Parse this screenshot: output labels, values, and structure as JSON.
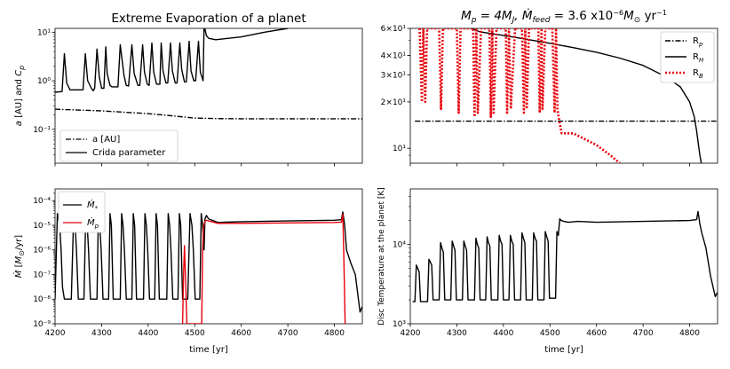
{
  "figure": {
    "time_xlabel": "time [yr]"
  },
  "chart_data": [
    {
      "id": "tl",
      "type": "line",
      "title": "Extreme Evaporation of a planet",
      "ylabel": "a [AU] and C_p",
      "xlabel": "",
      "xlim": [
        4200,
        4860
      ],
      "ylim": [
        0.02,
        12
      ],
      "yscale": "log",
      "xticks": [
        4200,
        4300,
        4400,
        4500,
        4600,
        4700,
        4800
      ],
      "xticklabels": [],
      "yticks": [
        0.1,
        1,
        10
      ],
      "yticklabels": [
        "10⁻¹",
        "10⁰",
        "10¹"
      ],
      "legend": {
        "position": "lower-left",
        "entries": [
          {
            "label": "a [AU]",
            "style": "dashdot",
            "color": "#000000"
          },
          {
            "label": "Crida parameter",
            "style": "solid",
            "color": "#000000"
          }
        ]
      },
      "series": [
        {
          "name": "a [AU]",
          "style": "dashdot",
          "color": "#000000",
          "x": [
            4200,
            4300,
            4400,
            4450,
            4500,
            4550,
            4600,
            4860
          ],
          "y": [
            0.26,
            0.24,
            0.21,
            0.19,
            0.17,
            0.166,
            0.165,
            0.165
          ]
        },
        {
          "name": "Crida parameter",
          "style": "solid",
          "color": "#000000",
          "x": [
            4200,
            4215,
            4220,
            4225,
            4232,
            4260,
            4265,
            4270,
            4278,
            4282,
            4285,
            4290,
            4295,
            4300,
            4305,
            4309,
            4312,
            4318,
            4322,
            4335,
            4340,
            4348,
            4353,
            4358,
            4365,
            4370,
            4378,
            4382,
            4388,
            4392,
            4398,
            4402,
            4408,
            4412,
            4418,
            4425,
            4428,
            4432,
            4438,
            4442,
            4448,
            4452,
            4458,
            4462,
            4468,
            4472,
            4478,
            4482,
            4488,
            4492,
            4498,
            4502,
            4508,
            4512,
            4518,
            4520,
            4525,
            4530,
            4545,
            4600,
            4650,
            4700
          ],
          "y": [
            0.58,
            0.6,
            3.6,
            0.9,
            0.65,
            0.65,
            3.6,
            1.0,
            0.7,
            0.62,
            0.7,
            4.5,
            1.2,
            0.7,
            0.7,
            5.0,
            1.4,
            0.8,
            0.75,
            0.75,
            5.5,
            1.3,
            0.8,
            0.78,
            5.5,
            1.4,
            0.8,
            0.8,
            5.5,
            1.5,
            0.85,
            0.8,
            6.0,
            1.5,
            0.85,
            0.85,
            6.0,
            1.6,
            0.9,
            0.9,
            6.0,
            1.6,
            0.9,
            0.9,
            6.0,
            1.7,
            0.95,
            0.95,
            6.5,
            1.6,
            1.0,
            1.0,
            6.5,
            1.5,
            1.0,
            14,
            8.5,
            7.5,
            7.0,
            8.0,
            10,
            12
          ]
        }
      ]
    },
    {
      "id": "tr",
      "type": "line",
      "title": "M_p = 4M_J, Ṁ_feed = 3.6 x10⁻⁶ M_⊙ yr⁻¹",
      "ylabel": "",
      "xlabel": "",
      "xlim": [
        4200,
        4860
      ],
      "ylim": [
        8,
        60
      ],
      "yscale": "log",
      "xticks": [
        4200,
        4300,
        4400,
        4500,
        4600,
        4700,
        4800
      ],
      "xticklabels": [],
      "yticks": [
        10,
        20,
        30,
        40,
        60
      ],
      "yticklabels": [
        "10¹",
        "2×10¹",
        "3×10¹",
        "4×10¹",
        "6×10¹"
      ],
      "legend": {
        "position": "top-right",
        "entries": [
          {
            "label": "R_p",
            "style": "dashdot",
            "color": "#000000"
          },
          {
            "label": "R_H",
            "style": "solid",
            "color": "#000000"
          },
          {
            "label": "R_B",
            "style": "dotted",
            "color": "#e8000b"
          }
        ]
      },
      "series": [
        {
          "name": "R_p",
          "style": "dashdot",
          "color": "#000000",
          "x": [
            4210,
            4860
          ],
          "y": [
            15,
            15
          ]
        },
        {
          "name": "R_H",
          "style": "solid",
          "color": "#000000",
          "x": [
            4330,
            4350,
            4400,
            4450,
            4500,
            4550,
            4600,
            4650,
            4700,
            4750,
            4780,
            4800,
            4810,
            4815,
            4820,
            4822,
            4825
          ],
          "y": [
            60,
            57,
            54,
            51,
            48,
            45,
            42,
            38.5,
            34.5,
            29,
            25,
            20,
            16,
            13,
            10,
            9,
            8
          ]
        },
        {
          "name": "R_B",
          "style": "dotted",
          "color": "#e8000b",
          "x": [
            4220,
            4225,
            4228,
            4232,
            4236,
            4262,
            4266,
            4270,
            4300,
            4304,
            4308,
            4335,
            4338,
            4342,
            4345,
            4352,
            4370,
            4373,
            4376,
            4379,
            4385,
            4405,
            4408,
            4412,
            4416,
            4425,
            4440,
            4444,
            4447,
            4450,
            4455,
            4475,
            4478,
            4482,
            4484,
            4490,
            4505,
            4510,
            4513,
            4516,
            4520,
            4525,
            4550,
            4600,
            4630,
            4650
          ],
          "y": [
            60,
            20,
            60,
            20,
            60,
            60,
            18,
            60,
            60,
            17,
            60,
            60,
            16,
            60,
            17,
            60,
            60,
            16,
            60,
            17,
            60,
            60,
            17,
            60,
            18,
            60,
            60,
            17,
            60,
            18,
            60,
            60,
            17,
            60,
            18,
            60,
            60,
            17,
            60,
            18,
            15,
            12.5,
            12.5,
            10.5,
            9,
            8
          ]
        }
      ]
    },
    {
      "id": "bl",
      "type": "line",
      "title": "",
      "ylabel": "Ṁ [M_⊙/yr]",
      "xlabel": "time [yr]",
      "xlim": [
        4200,
        4860
      ],
      "ylim": [
        1e-09,
        0.0003
      ],
      "yscale": "log",
      "xticks": [
        4200,
        4300,
        4400,
        4500,
        4600,
        4700,
        4800
      ],
      "xticklabels": [
        "4200",
        "4300",
        "4400",
        "4500",
        "4600",
        "4700",
        "4800"
      ],
      "yticks": [
        1e-09,
        1e-08,
        1e-07,
        1e-06,
        1e-05,
        0.0001
      ],
      "yticklabels": [
        "10⁻⁹",
        "10⁻⁸",
        "10⁻⁷",
        "10⁻⁶",
        "10⁻⁵",
        "10⁻⁴"
      ],
      "legend": {
        "position": "top-left",
        "entries": [
          {
            "label": "Ṁ_*",
            "style": "solid",
            "color": "#000000"
          },
          {
            "label": "Ṁ_p",
            "style": "solid",
            "color": "#e8000b"
          }
        ]
      },
      "series": [
        {
          "name": "Ṁ_*",
          "style": "solid",
          "color": "#000000",
          "x": [
            4200,
            4205,
            4210,
            4213,
            4216,
            4220,
            4235,
            4240,
            4243,
            4246,
            4250,
            4262,
            4266,
            4269,
            4272,
            4276,
            4290,
            4293,
            4296,
            4299,
            4303,
            4315,
            4318,
            4321,
            4325,
            4340,
            4343,
            4346,
            4349,
            4353,
            4365,
            4368,
            4371,
            4375,
            4390,
            4393,
            4396,
            4399,
            4403,
            4414,
            4417,
            4420,
            4424,
            4440,
            4443,
            4446,
            4449,
            4453,
            4464,
            4467,
            4470,
            4474,
            4485,
            4490,
            4494,
            4497,
            4501,
            4511,
            4514,
            4517,
            4520,
            4522,
            4525,
            4530,
            4550,
            4600,
            4700,
            4800,
            4815,
            4818,
            4822,
            4826,
            4835,
            4845,
            4855,
            4860
          ],
          "y": [
            1e-08,
            3e-05,
            1e-05,
            1e-06,
            3e-08,
            1e-08,
            1e-08,
            3e-05,
            1e-05,
            1e-06,
            1e-08,
            1e-08,
            3e-05,
            1e-05,
            1e-06,
            1e-08,
            1e-08,
            3e-05,
            1e-05,
            1e-06,
            1e-08,
            1e-08,
            3e-05,
            1e-05,
            1e-08,
            1e-08,
            3e-05,
            1e-05,
            1e-06,
            1e-08,
            1e-08,
            3e-05,
            1e-05,
            1e-08,
            1e-08,
            3e-05,
            1e-05,
            1e-06,
            1e-08,
            1e-08,
            3e-05,
            1e-05,
            1e-08,
            1e-08,
            3e-05,
            1e-05,
            1e-06,
            1e-08,
            1e-08,
            3e-05,
            1e-05,
            1e-08,
            1e-08,
            3e-05,
            1e-05,
            1e-06,
            1e-08,
            1e-08,
            3e-05,
            1e-05,
            1e-06,
            1.8e-05,
            2.5e-05,
            1.8e-05,
            1.3e-05,
            1.4e-05,
            1.5e-05,
            1.6e-05,
            1.7e-05,
            3.5e-05,
            1e-05,
            1e-06,
            3e-07,
            1e-07,
            3e-09,
            5e-09
          ]
        },
        {
          "name": "Ṁ_p",
          "style": "solid",
          "color": "#e8000b",
          "x": [
            4474,
            4476,
            4478,
            4480,
            4483,
            4515,
            4517,
            4519,
            4521,
            4523,
            4525,
            4530,
            4550,
            4600,
            4700,
            4800,
            4815,
            4818,
            4820,
            4822,
            4823
          ],
          "y": [
            1e-09,
            1e-07,
            1.5e-06,
            1e-07,
            1e-09,
            1e-09,
            1e-06,
            8e-06,
            1.3e-05,
            1.5e-05,
            1.6e-05,
            1.5e-05,
            1.2e-05,
            1.2e-05,
            1.25e-05,
            1.3e-05,
            1.35e-05,
            2.8e-05,
            1e-06,
            1e-08,
            1e-09
          ]
        }
      ]
    },
    {
      "id": "br",
      "type": "line",
      "title": "",
      "ylabel": "Disc Temperature at the planet [K]",
      "xlabel": "time [yr]",
      "xlim": [
        4200,
        4860
      ],
      "ylim": [
        1000,
        50000
      ],
      "yscale": "log",
      "xticks": [
        4200,
        4300,
        4400,
        4500,
        4600,
        4700,
        4800
      ],
      "xticklabels": [
        "4200",
        "4300",
        "4400",
        "4500",
        "4600",
        "4700",
        "4800"
      ],
      "yticks": [
        1000,
        10000
      ],
      "yticklabels": [
        "10³",
        "10⁴"
      ],
      "legend": null,
      "series": [
        {
          "name": "Disc Temperature",
          "style": "solid",
          "color": "#000000",
          "x": [
            4205,
            4210,
            4213,
            4216,
            4219,
            4222,
            4237,
            4240,
            4243,
            4246,
            4249,
            4262,
            4265,
            4268,
            4271,
            4274,
            4287,
            4290,
            4293,
            4296,
            4299,
            4312,
            4315,
            4318,
            4321,
            4324,
            4338,
            4341,
            4344,
            4347,
            4350,
            4362,
            4365,
            4368,
            4371,
            4374,
            4388,
            4391,
            4394,
            4397,
            4400,
            4412,
            4415,
            4418,
            4421,
            4424,
            4437,
            4440,
            4443,
            4446,
            4449,
            4462,
            4465,
            4468,
            4471,
            4474,
            4487,
            4490,
            4493,
            4496,
            4499,
            4512,
            4515,
            4518,
            4521,
            4524,
            4530,
            4540,
            4560,
            4600,
            4700,
            4800,
            4815,
            4818,
            4822,
            4826,
            4835,
            4845,
            4855,
            4860
          ],
          "y": [
            1900,
            1900,
            5500,
            5000,
            4500,
            1900,
            1900,
            6500,
            6000,
            5500,
            2000,
            2000,
            10500,
            9000,
            8000,
            2000,
            2000,
            11000,
            9500,
            8500,
            2000,
            2000,
            11000,
            9500,
            8500,
            2000,
            2000,
            12000,
            10000,
            9000,
            2000,
            2000,
            12500,
            10500,
            9500,
            2000,
            2000,
            13000,
            11000,
            10000,
            2000,
            2000,
            13000,
            11000,
            10000,
            2000,
            2000,
            14000,
            12000,
            10500,
            2000,
            2000,
            14000,
            12000,
            11000,
            2000,
            2000,
            14500,
            12500,
            11000,
            2100,
            2100,
            14500,
            13000,
            21000,
            20000,
            19500,
            19000,
            19500,
            19000,
            19500,
            20000,
            20500,
            26000,
            18000,
            14000,
            9000,
            4000,
            2200,
            2500
          ]
        }
      ]
    }
  ]
}
